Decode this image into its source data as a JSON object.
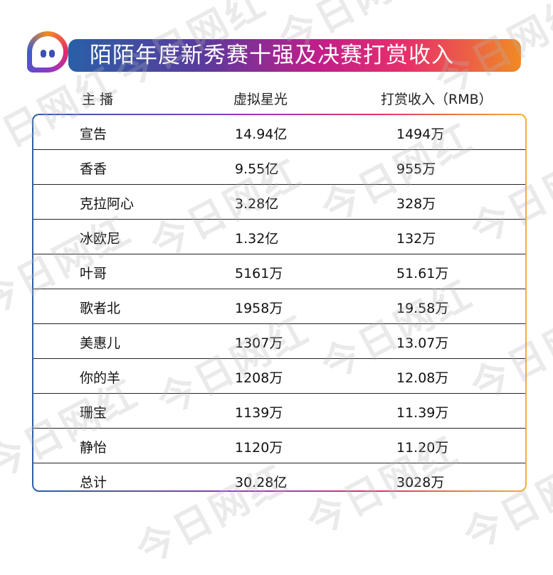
{
  "watermark": "今日网红",
  "title": "陌陌年度新秀赛十强及决赛打赏收入",
  "headers": [
    "主 播",
    "虚拟星光",
    "打赏收入（RMB）"
  ],
  "rows": [
    [
      "宣告",
      "14.94亿",
      "1494万"
    ],
    [
      "香香",
      "9.55亿",
      "955万"
    ],
    [
      "克拉阿心",
      "3.28亿",
      "328万"
    ],
    [
      "冰欧尼",
      "1.32亿",
      "132万"
    ],
    [
      "叶哥",
      "5161万",
      "51.61万"
    ],
    [
      "歌者北",
      "1958万",
      "19.58万"
    ],
    [
      "美惠儿",
      "1307万",
      "13.07万"
    ],
    [
      "你的羊",
      "1208万",
      "12.08万"
    ],
    [
      "珊宝",
      "1139万",
      "11.39万"
    ],
    [
      "静怡",
      "1120万",
      "11.20万"
    ],
    [
      "总计",
      "30.28亿",
      "3028万"
    ]
  ]
}
